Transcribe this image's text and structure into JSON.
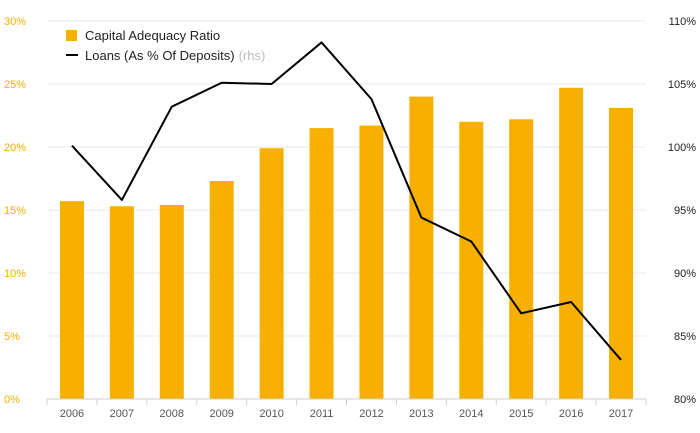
{
  "chart_data": {
    "type": "bar",
    "categories": [
      "2006",
      "2007",
      "2008",
      "2009",
      "2010",
      "2011",
      "2012",
      "2013",
      "2014",
      "2015",
      "2016",
      "2017"
    ],
    "series": [
      {
        "name": "Capital Adequacy Ratio",
        "type": "bar",
        "axis": "left",
        "color": "#f7b000",
        "values": [
          15.7,
          15.3,
          15.4,
          17.3,
          19.9,
          21.5,
          21.7,
          24.0,
          22.0,
          22.2,
          24.7,
          23.1
        ]
      },
      {
        "name": "Loans (As % Of Deposits)",
        "type": "line",
        "axis": "right",
        "color": "#000000",
        "values": [
          100.1,
          95.8,
          103.2,
          105.1,
          105.0,
          108.3,
          103.8,
          94.4,
          92.5,
          86.8,
          87.7,
          83.1
        ]
      }
    ],
    "legend": {
      "placement": "top-left",
      "rhs_note": "(rhs)"
    },
    "y_left": {
      "ylim": [
        0,
        30
      ],
      "ticks": [
        0,
        5,
        10,
        15,
        20,
        25,
        30
      ],
      "tick_labels": [
        "0%",
        "5%",
        "10%",
        "15%",
        "20%",
        "25%",
        "30%"
      ],
      "color": "#f5b000"
    },
    "y_right": {
      "ylim": [
        80,
        110
      ],
      "ticks": [
        80,
        85,
        90,
        95,
        100,
        105,
        110
      ],
      "tick_labels": [
        "80%",
        "85%",
        "90%",
        "95%",
        "100%",
        "105%",
        "110%"
      ],
      "color": "#222222"
    },
    "grid": true
  }
}
